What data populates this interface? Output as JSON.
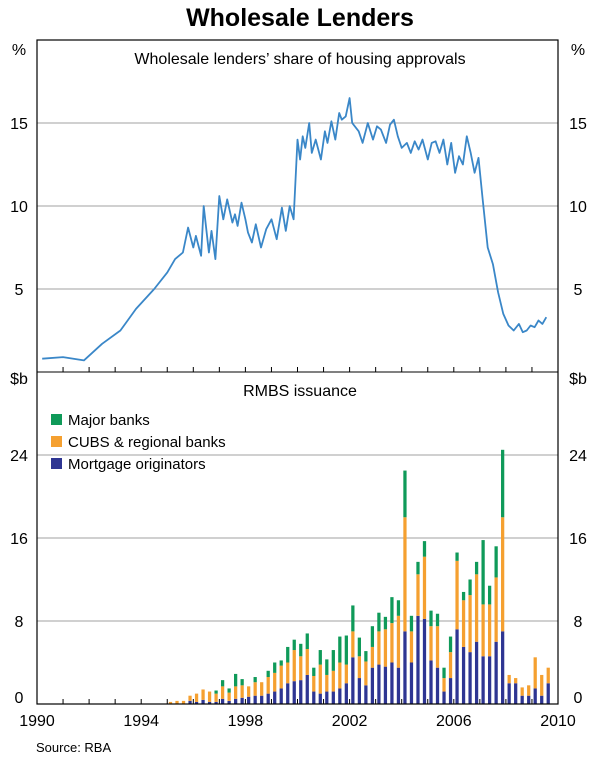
{
  "title": "Wholesale Lenders",
  "source": "Source: RBA",
  "chart_data": [
    {
      "type": "line",
      "title": "Wholesale lenders’ share of housing approvals",
      "unit": "%",
      "ylim": [
        0,
        20
      ],
      "yticks": [
        5,
        10,
        15
      ],
      "xlim": [
        1990,
        2010
      ],
      "color": "#3a87c8",
      "x": [
        1990.2,
        1991.0,
        1991.8,
        1992.5,
        1993.2,
        1993.8,
        1994.5,
        1995.0,
        1995.3,
        1995.6,
        1995.8,
        1996.0,
        1996.1,
        1996.3,
        1996.4,
        1996.6,
        1996.7,
        1996.85,
        1997.0,
        1997.15,
        1997.3,
        1997.5,
        1997.6,
        1997.7,
        1997.85,
        1998.0,
        1998.1,
        1998.25,
        1998.4,
        1998.6,
        1998.8,
        1999.0,
        1999.2,
        1999.4,
        1999.55,
        1999.7,
        1999.85,
        2000.0,
        2000.1,
        2000.2,
        2000.3,
        2000.45,
        2000.55,
        2000.7,
        2000.9,
        2001.05,
        2001.15,
        2001.3,
        2001.45,
        2001.6,
        2001.7,
        2001.85,
        2002.0,
        2002.1,
        2002.2,
        2002.35,
        2002.5,
        2002.7,
        2002.9,
        2003.05,
        2003.2,
        2003.4,
        2003.55,
        2003.7,
        2003.85,
        2004.0,
        2004.2,
        2004.35,
        2004.5,
        2004.65,
        2004.8,
        2005.0,
        2005.15,
        2005.3,
        2005.45,
        2005.6,
        2005.75,
        2005.9,
        2006.05,
        2006.2,
        2006.35,
        2006.5,
        2006.65,
        2006.8,
        2006.95,
        2007.1,
        2007.3,
        2007.5,
        2007.7,
        2007.9,
        2008.1,
        2008.3,
        2008.5,
        2008.65,
        2008.8,
        2008.95,
        2009.1,
        2009.25,
        2009.4,
        2009.55
      ],
      "values": [
        0.8,
        0.9,
        0.7,
        1.7,
        2.5,
        3.8,
        5.0,
        6.0,
        6.8,
        7.2,
        8.7,
        7.5,
        8.2,
        7.0,
        10.0,
        7.2,
        8.5,
        6.8,
        10.6,
        9.2,
        10.4,
        9.0,
        9.5,
        8.8,
        10.2,
        9.2,
        8.4,
        7.8,
        8.9,
        7.5,
        8.6,
        9.2,
        8.0,
        9.9,
        8.5,
        10.0,
        9.2,
        14.0,
        12.8,
        14.2,
        13.5,
        15.0,
        13.2,
        14.0,
        12.8,
        14.5,
        13.8,
        15.1,
        14.0,
        15.6,
        15.2,
        15.4,
        16.5,
        15.0,
        14.8,
        14.5,
        13.8,
        15.0,
        14.0,
        14.8,
        14.6,
        13.8,
        14.9,
        15.2,
        14.2,
        13.5,
        13.8,
        13.2,
        13.9,
        13.4,
        14.0,
        12.8,
        13.8,
        13.9,
        13.2,
        14.0,
        12.5,
        13.8,
        12.0,
        13.0,
        12.5,
        14.2,
        13.2,
        12.0,
        12.9,
        10.5,
        7.5,
        6.5,
        4.8,
        3.5,
        2.8,
        2.5,
        2.9,
        2.4,
        2.5,
        2.8,
        2.7,
        3.1,
        2.9,
        3.3
      ]
    },
    {
      "type": "bar",
      "stacked": true,
      "title": "RMBS issuance",
      "unit": "$b",
      "ylim": [
        0,
        32
      ],
      "yticks": [
        0,
        8,
        16,
        24
      ],
      "xlim": [
        1990,
        2010
      ],
      "xticks": [
        1990,
        1994,
        1998,
        2002,
        2006,
        2010
      ],
      "series": [
        {
          "name": "Major banks",
          "color": "#0f9a59"
        },
        {
          "name": "CUBS & regional banks",
          "color": "#f5a030"
        },
        {
          "name": "Mortgage originators",
          "color": "#2e3592"
        }
      ],
      "quarters": [
        "1994Q1",
        "1994Q2",
        "1994Q3",
        "1994Q4",
        "1995Q1",
        "1995Q2",
        "1995Q3",
        "1995Q4",
        "1996Q1",
        "1996Q2",
        "1996Q3",
        "1996Q4",
        "1997Q1",
        "1997Q2",
        "1997Q3",
        "1997Q4",
        "1998Q1",
        "1998Q2",
        "1998Q3",
        "1998Q4",
        "1999Q1",
        "1999Q2",
        "1999Q3",
        "1999Q4",
        "2000Q1",
        "2000Q2",
        "2000Q3",
        "2000Q4",
        "2001Q1",
        "2001Q2",
        "2001Q3",
        "2001Q4",
        "2002Q1",
        "2002Q2",
        "2002Q3",
        "2002Q4",
        "2003Q1",
        "2003Q2",
        "2003Q3",
        "2003Q4",
        "2004Q1",
        "2004Q2",
        "2004Q3",
        "2004Q4",
        "2005Q1",
        "2005Q2",
        "2005Q3",
        "2005Q4",
        "2006Q1",
        "2006Q2",
        "2006Q3",
        "2006Q4",
        "2007Q1",
        "2007Q2",
        "2007Q3",
        "2007Q4",
        "2008Q1",
        "2008Q2",
        "2008Q3",
        "2008Q4",
        "2009Q1",
        "2009Q2",
        "2009Q3"
      ],
      "values_major": [
        0,
        0,
        0,
        0,
        0,
        0,
        0,
        0,
        0,
        0,
        0,
        0.3,
        0.6,
        0.4,
        1.2,
        0.6,
        0,
        0.5,
        0,
        0.6,
        1.0,
        0.5,
        1.5,
        1.0,
        1.2,
        1.5,
        0.8,
        1.4,
        1.5,
        2.0,
        2.5,
        2.8,
        2.5,
        1.8,
        1.0,
        2.0,
        1.8,
        1.2,
        2.5,
        1.5,
        4.5,
        1.5,
        1.2,
        1.5,
        1.5,
        1.2,
        1.0,
        1.5,
        0.8,
        0.8,
        1.5,
        1.2,
        6.2,
        1.8,
        3.0,
        6.5,
        0,
        0,
        0,
        0,
        0,
        0,
        0
      ],
      "values_cubs": [
        0,
        0,
        0,
        0,
        0.2,
        0.3,
        0.3,
        0.5,
        0.8,
        1.0,
        1.0,
        0.8,
        1.2,
        0.8,
        1.2,
        1.2,
        1.0,
        1.3,
        1.3,
        1.6,
        1.8,
        2.2,
        2.0,
        3.0,
        2.3,
        2.5,
        1.5,
        2.8,
        1.6,
        2.0,
        2.5,
        1.8,
        2.5,
        2.1,
        2.3,
        2.0,
        3.2,
        3.6,
        3.8,
        5.0,
        11.0,
        3.0,
        4.0,
        6.0,
        3.3,
        4.0,
        1.3,
        2.5,
        6.6,
        4.5,
        5.5,
        6.5,
        5.0,
        5.0,
        6.2,
        11.0,
        0.8,
        0.5,
        0.8,
        1.0,
        3.0,
        2.0,
        1.5
      ],
      "values_mo": [
        0,
        0,
        0,
        0,
        0,
        0,
        0,
        0.3,
        0.2,
        0.4,
        0.2,
        0.2,
        0.5,
        0.3,
        0.5,
        0.6,
        0.7,
        0.8,
        0.8,
        1.0,
        1.2,
        1.5,
        2.0,
        2.2,
        2.3,
        2.8,
        1.2,
        1.0,
        1.2,
        1.2,
        1.5,
        2.0,
        4.5,
        2.5,
        1.8,
        3.5,
        3.8,
        3.6,
        4.0,
        3.5,
        7.0,
        4.0,
        8.5,
        8.2,
        4.2,
        3.5,
        1.2,
        2.5,
        7.2,
        5.5,
        5.0,
        6.0,
        4.6,
        4.6,
        6.0,
        7.0,
        2.0,
        2.0,
        0.8,
        0.8,
        1.5,
        0.8,
        2.0
      ]
    }
  ]
}
